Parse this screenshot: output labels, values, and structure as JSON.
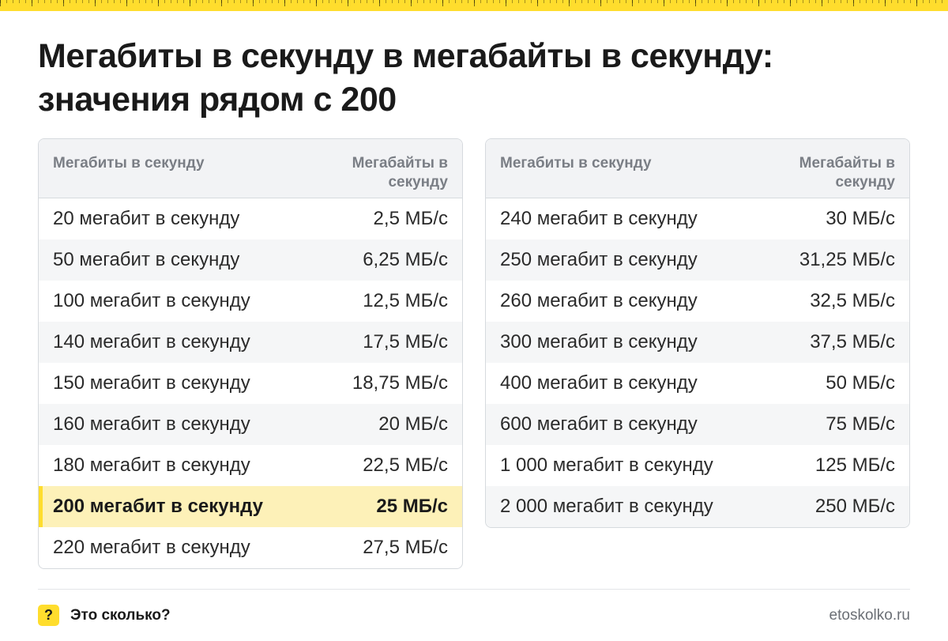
{
  "title": {
    "line1": "Мегабиты в секунду в мегабайты в секунду:",
    "line2": "значения рядом с 200"
  },
  "tables": [
    {
      "header": {
        "col1": "Мегабиты в секунду",
        "col2": "Мегабайты в секунду"
      },
      "rows": [
        {
          "mbit": "20 мегабит в секунду",
          "mbyte": "2,5 МБ/с"
        },
        {
          "mbit": "50 мегабит в секунду",
          "mbyte": "6,25 МБ/с"
        },
        {
          "mbit": "100 мегабит в секунду",
          "mbyte": "12,5 МБ/с"
        },
        {
          "mbit": "140 мегабит в секунду",
          "mbyte": "17,5 МБ/с"
        },
        {
          "mbit": "150 мегабит в секунду",
          "mbyte": "18,75 МБ/с"
        },
        {
          "mbit": "160 мегабит в секунду",
          "mbyte": "20 МБ/с"
        },
        {
          "mbit": "180 мегабит в секунду",
          "mbyte": "22,5 МБ/с"
        },
        {
          "mbit": "200 мегабит в секунду",
          "mbyte": "25 МБ/с",
          "highlight": true
        },
        {
          "mbit": "220 мегабит в секунду",
          "mbyte": "27,5 МБ/с"
        }
      ]
    },
    {
      "header": {
        "col1": "Мегабиты в секунду",
        "col2": "Мегабайты в секунду"
      },
      "rows": [
        {
          "mbit": "240 мегабит в секунду",
          "mbyte": "30 МБ/с"
        },
        {
          "mbit": "250 мегабит в секунду",
          "mbyte": "31,25 МБ/с"
        },
        {
          "mbit": "260 мегабит в секунду",
          "mbyte": "32,5 МБ/с"
        },
        {
          "mbit": "300 мегабит в секунду",
          "mbyte": "37,5 МБ/с"
        },
        {
          "mbit": "400 мегабит в секунду",
          "mbyte": "50 МБ/с"
        },
        {
          "mbit": "600 мегабит в секунду",
          "mbyte": "75 МБ/с"
        },
        {
          "mbit": "1 000 мегабит в секунду",
          "mbyte": "125 МБ/с"
        },
        {
          "mbit": "2 000 мегабит в секунду",
          "mbyte": "250 МБ/с"
        }
      ]
    }
  ],
  "footer": {
    "brand_icon": "?",
    "brand_name": "Это сколько?",
    "site": "etoskolko.ru"
  },
  "colors": {
    "accent": "#ffdd2d",
    "highlight_row": "#fdf1b8",
    "header_bg": "#f2f3f5"
  },
  "icons": {
    "brand": "question-mark-icon"
  }
}
